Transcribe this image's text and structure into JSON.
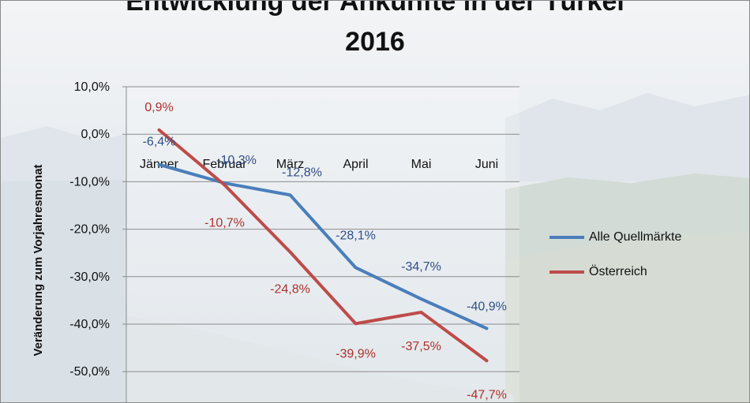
{
  "colors": {
    "series_alle": "#4a7ebb",
    "series_oesterreich": "#be4b48",
    "label_alle": "#2f4d89",
    "label_oesterreich": "#b0302b",
    "gridline": "#8c8c8c"
  },
  "chart_data": {
    "type": "line",
    "title": [
      "Entwicklung der Ankünfte in der Türkei",
      "2016"
    ],
    "ylabel": "Veränderung zum Vorjahresmonat",
    "xlabel": "",
    "categories": [
      "Jänner",
      "Februar",
      "März",
      "April",
      "Mai",
      "Juni"
    ],
    "ylim": [
      -50,
      10
    ],
    "yticks": [
      10,
      0,
      -10,
      -20,
      -30,
      -40,
      -50
    ],
    "ytick_labels": [
      "10,0%",
      "0,0%",
      "-10,0%",
      "-20,0%",
      "-30,0%",
      "-40,0%",
      "-50,0%"
    ],
    "grid": true,
    "legend_position": "right",
    "series": [
      {
        "name": "Alle Quellmärkte",
        "values": [
          -6.4,
          -10.3,
          -12.8,
          -28.1,
          -34.7,
          -40.9
        ],
        "labels": [
          "-6,4%",
          "-10,3%",
          "-12,8%",
          "-28,1%",
          "-34,7%",
          "-40,9%"
        ]
      },
      {
        "name": "Österreich",
        "values": [
          0.9,
          -10.7,
          -24.8,
          -39.9,
          -37.5,
          -47.7
        ],
        "labels": [
          "0,9%",
          "-10,7%",
          "-24,8%",
          "-39,9%",
          "-37,5%",
          "-47,7%"
        ]
      }
    ]
  }
}
